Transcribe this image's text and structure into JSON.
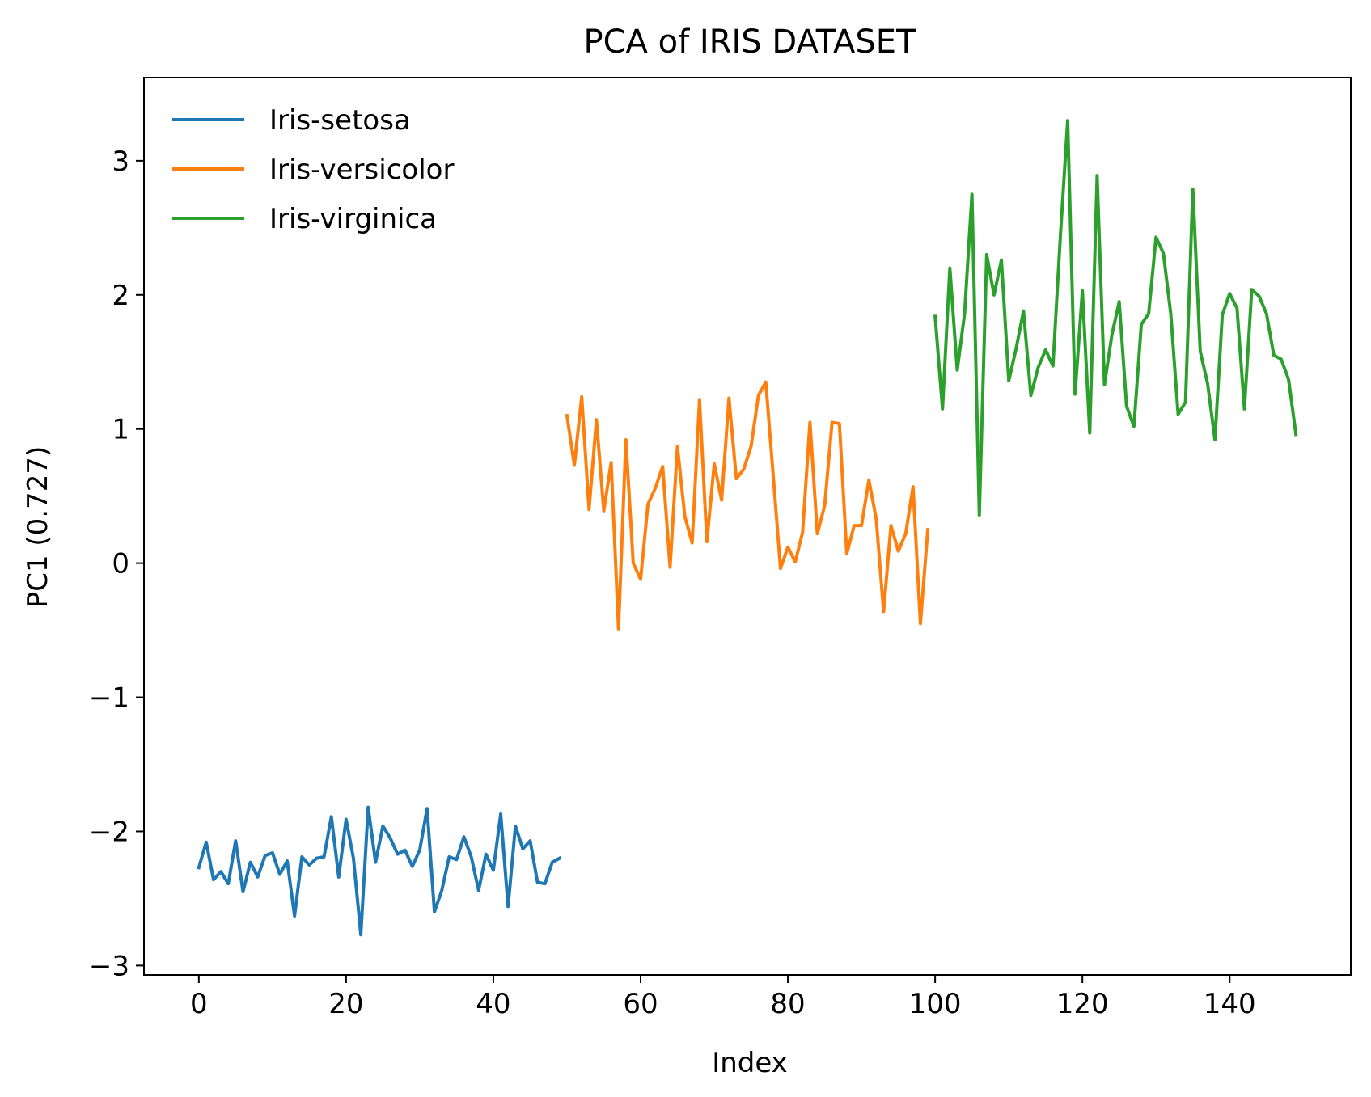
{
  "chart_data": {
    "type": "line",
    "title": "PCA of IRIS DATASET",
    "xlabel": "Index",
    "ylabel": "PC1 (0.727)",
    "xlim": [
      -7.45,
      156.45
    ],
    "ylim": [
      -3.07,
      3.62
    ],
    "xticks": [
      0,
      20,
      40,
      60,
      80,
      100,
      120,
      140
    ],
    "yticks": [
      -3,
      -2,
      -1,
      0,
      1,
      2,
      3
    ],
    "xtick_labels": [
      "0",
      "20",
      "40",
      "60",
      "80",
      "100",
      "120",
      "140"
    ],
    "ytick_labels": [
      "−3",
      "−2",
      "−1",
      "0",
      "1",
      "2",
      "3"
    ],
    "grid": false,
    "legend_position": "top-left",
    "series": [
      {
        "name": "Iris-setosa",
        "color": "#1f77b4",
        "x_start": 0,
        "values": [
          -2.27,
          -2.08,
          -2.36,
          -2.3,
          -2.39,
          -2.07,
          -2.45,
          -2.23,
          -2.34,
          -2.18,
          -2.16,
          -2.32,
          -2.22,
          -2.63,
          -2.19,
          -2.25,
          -2.2,
          -2.19,
          -1.89,
          -2.34,
          -1.91,
          -2.2,
          -2.77,
          -1.82,
          -2.23,
          -1.96,
          -2.05,
          -2.17,
          -2.14,
          -2.26,
          -2.14,
          -1.83,
          -2.6,
          -2.44,
          -2.19,
          -2.21,
          -2.04,
          -2.19,
          -2.44,
          -2.17,
          -2.29,
          -1.87,
          -2.56,
          -1.96,
          -2.13,
          -2.07,
          -2.38,
          -2.39,
          -2.23,
          -2.2
        ]
      },
      {
        "name": "Iris-versicolor",
        "color": "#ff7f0e",
        "x_start": 50,
        "values": [
          1.1,
          0.73,
          1.24,
          0.4,
          1.07,
          0.39,
          0.75,
          -0.49,
          0.92,
          0.0,
          -0.12,
          0.44,
          0.56,
          0.72,
          -0.03,
          0.87,
          0.35,
          0.15,
          1.22,
          0.16,
          0.74,
          0.47,
          1.23,
          0.63,
          0.7,
          0.87,
          1.25,
          1.35,
          0.66,
          -0.04,
          0.12,
          0.01,
          0.23,
          1.05,
          0.22,
          0.43,
          1.05,
          1.04,
          0.07,
          0.28,
          0.28,
          0.62,
          0.33,
          -0.36,
          0.28,
          0.09,
          0.22,
          0.57,
          -0.45,
          0.25
        ]
      },
      {
        "name": "Iris-virginica",
        "color": "#2ca02c",
        "x_start": 100,
        "values": [
          1.84,
          1.15,
          2.2,
          1.44,
          1.86,
          2.75,
          0.36,
          2.3,
          2.0,
          2.26,
          1.36,
          1.6,
          1.88,
          1.25,
          1.46,
          1.59,
          1.47,
          2.43,
          3.3,
          1.26,
          2.03,
          0.97,
          2.89,
          1.33,
          1.7,
          1.95,
          1.17,
          1.02,
          1.78,
          1.86,
          2.43,
          2.31,
          1.86,
          1.11,
          1.2,
          2.79,
          1.58,
          1.34,
          0.92,
          1.85,
          2.01,
          1.9,
          1.15,
          2.04,
          1.99,
          1.86,
          1.55,
          1.52,
          1.37,
          0.96
        ]
      }
    ]
  }
}
